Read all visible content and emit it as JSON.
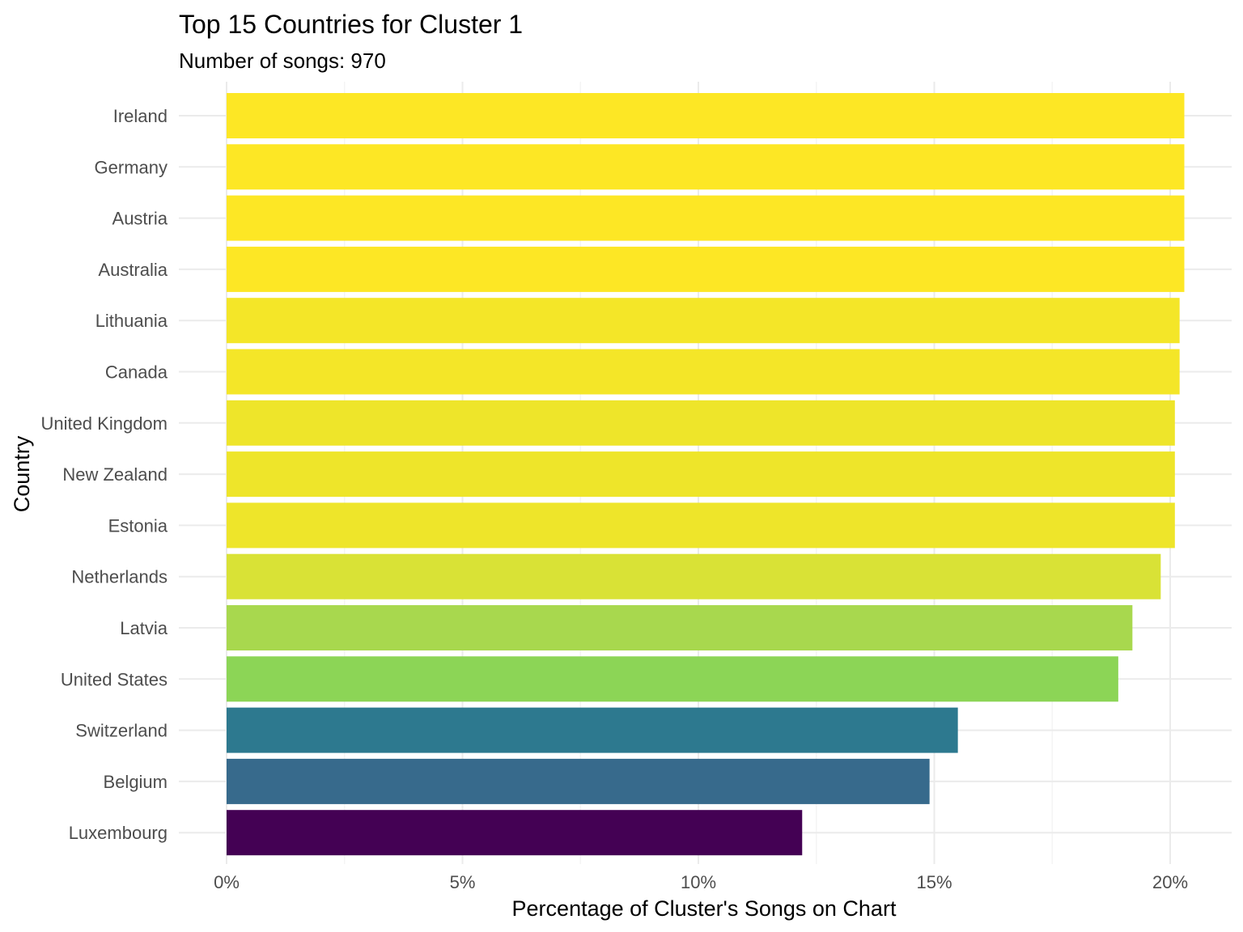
{
  "chart_data": {
    "type": "bar",
    "orientation": "horizontal",
    "title": "Top 15 Countries for Cluster 1",
    "subtitle": "Number of songs: 970",
    "xlabel": "Percentage of Cluster's Songs on Chart",
    "ylabel": "Country",
    "xlim": [
      0,
      21
    ],
    "x_ticks": [
      0,
      5,
      10,
      15,
      20
    ],
    "x_tick_labels": [
      "0%",
      "5%",
      "10%",
      "15%",
      "20%"
    ],
    "grid": true,
    "legend": "none",
    "categories": [
      "Ireland",
      "Germany",
      "Austria",
      "Australia",
      "Lithuania",
      "Canada",
      "United Kingdom",
      "New Zealand",
      "Estonia",
      "Netherlands",
      "Latvia",
      "United States",
      "Switzerland",
      "Belgium",
      "Luxembourg"
    ],
    "values": [
      20.3,
      20.3,
      20.3,
      20.3,
      20.2,
      20.2,
      20.1,
      20.1,
      20.1,
      19.8,
      19.2,
      18.9,
      15.5,
      14.9,
      12.2
    ],
    "colors": [
      "#FDE725",
      "#FDE725",
      "#FDE725",
      "#FDE725",
      "#F4E628",
      "#F4E628",
      "#EEE52A",
      "#EEE52A",
      "#EEE52A",
      "#D9E236",
      "#A8D84E",
      "#8CD556",
      "#2D798F",
      "#376A8C",
      "#440154"
    ]
  }
}
